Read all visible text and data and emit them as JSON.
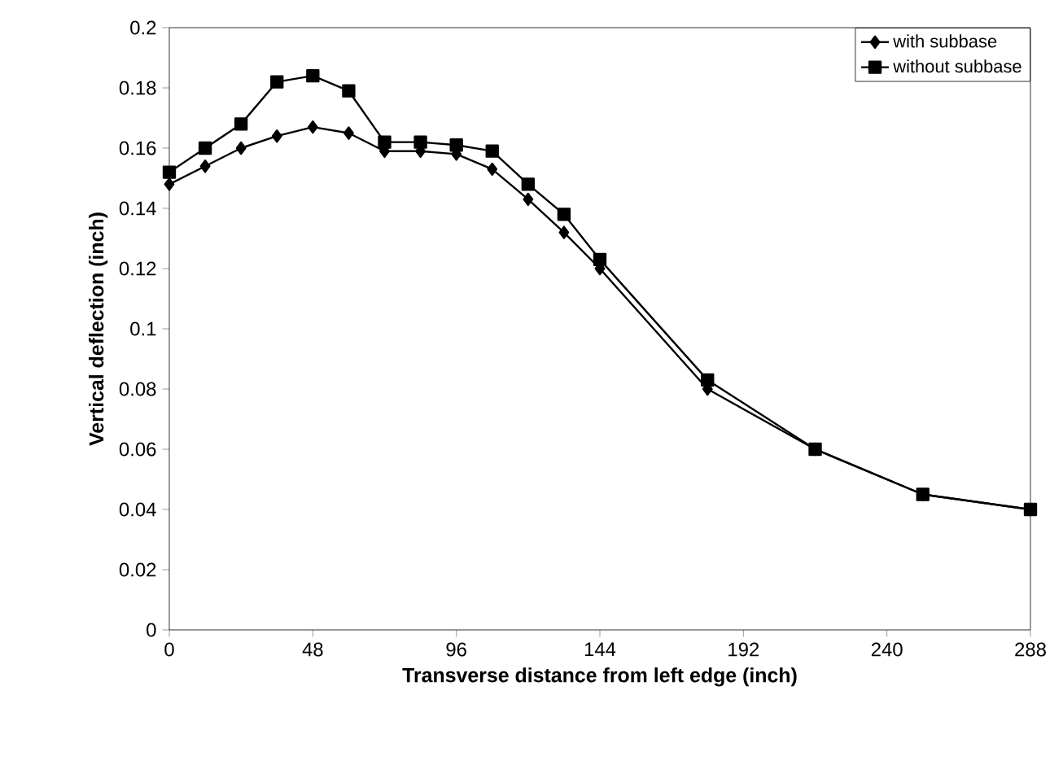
{
  "chart_data": {
    "type": "line",
    "xlabel": "Transverse distance from left edge (inch)",
    "ylabel": "Vertical deflection (inch)",
    "x": [
      0,
      12,
      24,
      36,
      48,
      60,
      72,
      84,
      96,
      108,
      120,
      132,
      144,
      180,
      216,
      252,
      288
    ],
    "xlim": [
      0,
      288
    ],
    "xticks": [
      0,
      48,
      96,
      144,
      192,
      240,
      288
    ],
    "ylim": [
      0,
      0.2
    ],
    "yticks": [
      0,
      0.02,
      0.04,
      0.06,
      0.08,
      0.1,
      0.12,
      0.14,
      0.16,
      0.18,
      0.2
    ],
    "grid": false,
    "legend": "top right",
    "line_style": "solid",
    "series": [
      {
        "name": "with subbase",
        "color": "#000000",
        "marker": "diamond",
        "values": [
          0.148,
          0.154,
          0.16,
          0.164,
          0.167,
          0.165,
          0.159,
          0.159,
          0.158,
          0.153,
          0.143,
          0.132,
          0.12,
          0.08,
          0.06,
          0.045,
          0.04
        ]
      },
      {
        "name": "without subbase",
        "color": "#000000",
        "marker": "square",
        "values": [
          0.152,
          0.16,
          0.168,
          0.182,
          0.184,
          0.179,
          0.162,
          0.162,
          0.161,
          0.159,
          0.148,
          0.138,
          0.123,
          0.083,
          0.06,
          0.045,
          0.04
        ]
      }
    ]
  }
}
